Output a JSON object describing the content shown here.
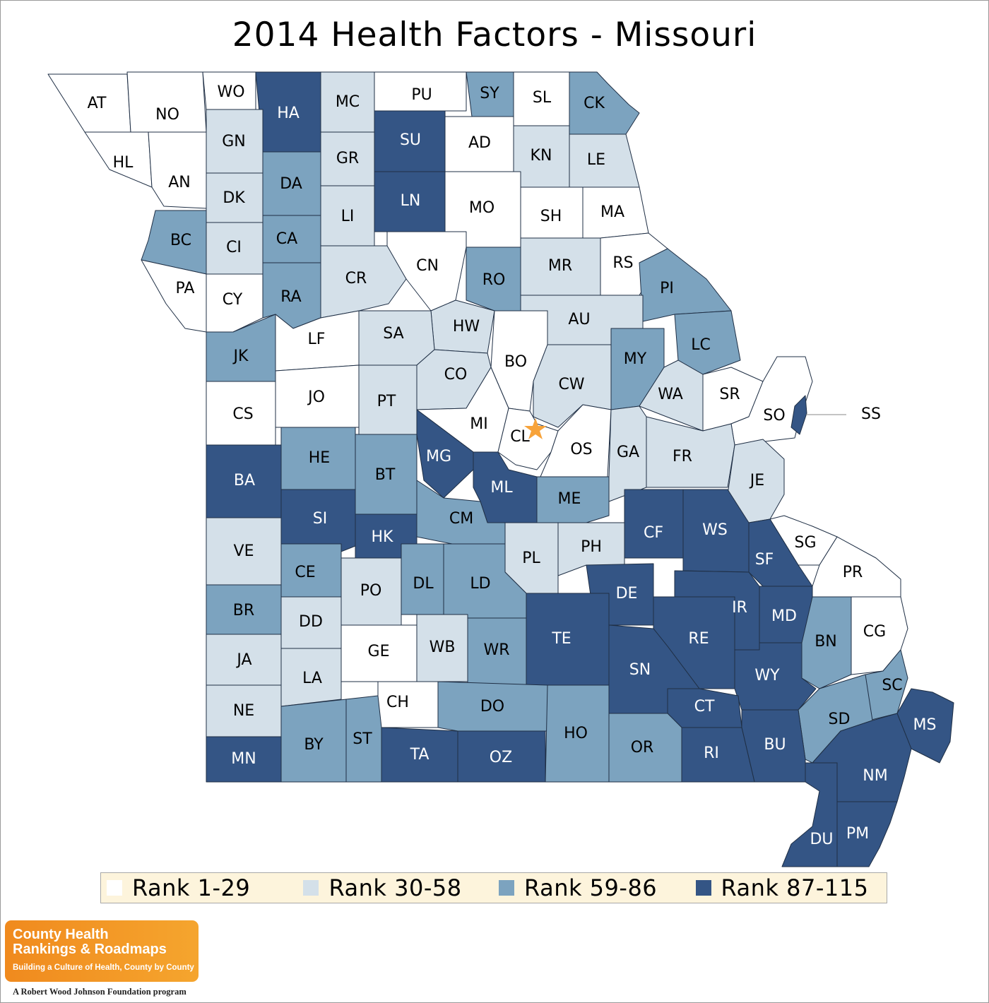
{
  "title": "2014 Health Factors - Missouri",
  "colors": {
    "rank_1_29": "#ffffff",
    "rank_30_58": "#d4e0e9",
    "rank_59_86": "#7ca3bf",
    "rank_87_115": "#345585",
    "star": "#f7a33a",
    "border": "#1f2f45"
  },
  "legend": [
    {
      "label": "Rank 1-29",
      "color": "#ffffff"
    },
    {
      "label": "Rank 30-58",
      "color": "#d4e0e9"
    },
    {
      "label": "Rank 59-86",
      "color": "#7ca3bf"
    },
    {
      "label": "Rank 87-115",
      "color": "#345585"
    }
  ],
  "counties": [
    {
      "code": "AT",
      "rank": 1
    },
    {
      "code": "NO",
      "rank": 1
    },
    {
      "code": "WO",
      "rank": 1
    },
    {
      "code": "HA",
      "rank": 4
    },
    {
      "code": "MC",
      "rank": 2
    },
    {
      "code": "PU",
      "rank": 1
    },
    {
      "code": "SY",
      "rank": 3
    },
    {
      "code": "SL",
      "rank": 1
    },
    {
      "code": "CK",
      "rank": 3
    },
    {
      "code": "HL",
      "rank": 1
    },
    {
      "code": "AN",
      "rank": 1
    },
    {
      "code": "GN",
      "rank": 2
    },
    {
      "code": "DA",
      "rank": 3
    },
    {
      "code": "GR",
      "rank": 2
    },
    {
      "code": "SU",
      "rank": 4
    },
    {
      "code": "AD",
      "rank": 1
    },
    {
      "code": "KN",
      "rank": 2
    },
    {
      "code": "LE",
      "rank": 2
    },
    {
      "code": "DK",
      "rank": 2
    },
    {
      "code": "LI",
      "rank": 2
    },
    {
      "code": "LN",
      "rank": 4
    },
    {
      "code": "MO",
      "rank": 1
    },
    {
      "code": "SH",
      "rank": 1
    },
    {
      "code": "MA",
      "rank": 1
    },
    {
      "code": "BC",
      "rank": 3
    },
    {
      "code": "CI",
      "rank": 2
    },
    {
      "code": "CA",
      "rank": 3
    },
    {
      "code": "CN",
      "rank": 1
    },
    {
      "code": "MR",
      "rank": 2
    },
    {
      "code": "RS",
      "rank": 1
    },
    {
      "code": "PA",
      "rank": 1
    },
    {
      "code": "CY",
      "rank": 1
    },
    {
      "code": "RA",
      "rank": 3
    },
    {
      "code": "CR",
      "rank": 2
    },
    {
      "code": "RO",
      "rank": 3
    },
    {
      "code": "PI",
      "rank": 3
    },
    {
      "code": "AU",
      "rank": 2
    },
    {
      "code": "HW",
      "rank": 2
    },
    {
      "code": "SA",
      "rank": 2
    },
    {
      "code": "LF",
      "rank": 1
    },
    {
      "code": "JK",
      "rank": 3
    },
    {
      "code": "BO",
      "rank": 1
    },
    {
      "code": "MY",
      "rank": 3
    },
    {
      "code": "LC",
      "rank": 3
    },
    {
      "code": "CO",
      "rank": 2
    },
    {
      "code": "CW",
      "rank": 2
    },
    {
      "code": "JO",
      "rank": 1
    },
    {
      "code": "PT",
      "rank": 2
    },
    {
      "code": "WA",
      "rank": 2
    },
    {
      "code": "SR",
      "rank": 1
    },
    {
      "code": "CS",
      "rank": 1
    },
    {
      "code": "SO",
      "rank": 1
    },
    {
      "code": "SS",
      "rank": 4
    },
    {
      "code": "MI",
      "rank": 1
    },
    {
      "code": "CL",
      "rank": 1
    },
    {
      "code": "OS",
      "rank": 1
    },
    {
      "code": "GA",
      "rank": 2
    },
    {
      "code": "FR",
      "rank": 2
    },
    {
      "code": "HE",
      "rank": 3
    },
    {
      "code": "MG",
      "rank": 4
    },
    {
      "code": "BT",
      "rank": 3
    },
    {
      "code": "JE",
      "rank": 2
    },
    {
      "code": "BA",
      "rank": 4
    },
    {
      "code": "ML",
      "rank": 4
    },
    {
      "code": "ME",
      "rank": 3
    },
    {
      "code": "SI",
      "rank": 4
    },
    {
      "code": "CM",
      "rank": 3
    },
    {
      "code": "CF",
      "rank": 4
    },
    {
      "code": "WS",
      "rank": 4
    },
    {
      "code": "VE",
      "rank": 2
    },
    {
      "code": "HK",
      "rank": 4
    },
    {
      "code": "SG",
      "rank": 1
    },
    {
      "code": "PH",
      "rank": 2
    },
    {
      "code": "SF",
      "rank": 4
    },
    {
      "code": "PL",
      "rank": 2
    },
    {
      "code": "CE",
      "rank": 3
    },
    {
      "code": "PR",
      "rank": 1
    },
    {
      "code": "PO",
      "rank": 2
    },
    {
      "code": "DL",
      "rank": 3
    },
    {
      "code": "LD",
      "rank": 3
    },
    {
      "code": "DE",
      "rank": 4
    },
    {
      "code": "IR",
      "rank": 4
    },
    {
      "code": "BR",
      "rank": 3
    },
    {
      "code": "MD",
      "rank": 4
    },
    {
      "code": "DD",
      "rank": 2
    },
    {
      "code": "TE",
      "rank": 4
    },
    {
      "code": "CG",
      "rank": 1
    },
    {
      "code": "BN",
      "rank": 3
    },
    {
      "code": "RE",
      "rank": 4
    },
    {
      "code": "GE",
      "rank": 1
    },
    {
      "code": "WB",
      "rank": 2
    },
    {
      "code": "WR",
      "rank": 3
    },
    {
      "code": "JA",
      "rank": 2
    },
    {
      "code": "SN",
      "rank": 4
    },
    {
      "code": "LA",
      "rank": 2
    },
    {
      "code": "WY",
      "rank": 4
    },
    {
      "code": "SC",
      "rank": 3
    },
    {
      "code": "CH",
      "rank": 1
    },
    {
      "code": "DO",
      "rank": 3
    },
    {
      "code": "CT",
      "rank": 4
    },
    {
      "code": "NE",
      "rank": 2
    },
    {
      "code": "ST",
      "rank": 3
    },
    {
      "code": "HO",
      "rank": 3
    },
    {
      "code": "SD",
      "rank": 3
    },
    {
      "code": "MS",
      "rank": 4
    },
    {
      "code": "BY",
      "rank": 3
    },
    {
      "code": "OR",
      "rank": 3
    },
    {
      "code": "BU",
      "rank": 4
    },
    {
      "code": "RI",
      "rank": 4
    },
    {
      "code": "TA",
      "rank": 4
    },
    {
      "code": "OZ",
      "rank": 4
    },
    {
      "code": "MN",
      "rank": 4
    },
    {
      "code": "NM",
      "rank": 4
    },
    {
      "code": "DU",
      "rank": 4
    },
    {
      "code": "PM",
      "rank": 4
    }
  ],
  "logo": {
    "line1": "County Health",
    "line2": "Rankings & Roadmaps",
    "tagline": "Building a Culture of Health, County by County",
    "footer": "A Robert Wood Johnson Foundation program"
  }
}
